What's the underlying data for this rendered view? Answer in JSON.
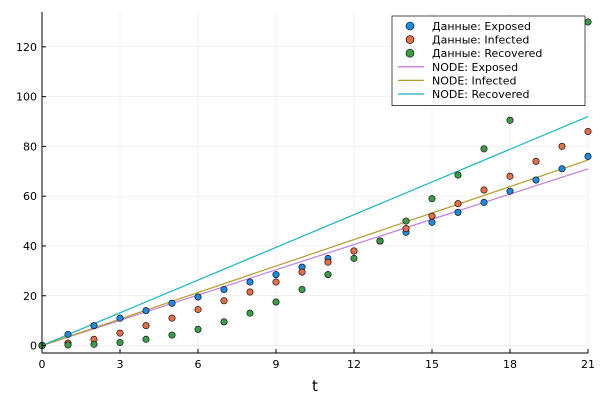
{
  "chart_data": {
    "type": "scatter",
    "title": "",
    "xlabel": "t",
    "ylabel": "",
    "xlim": [
      0,
      21
    ],
    "ylim": [
      -3,
      134
    ],
    "xticks": [
      0,
      3,
      6,
      9,
      12,
      15,
      18,
      21
    ],
    "yticks": [
      0,
      20,
      40,
      60,
      80,
      100,
      120
    ],
    "grid": true,
    "legend_position": "top-right",
    "scatter_series": [
      {
        "name": "Данные: Exposed",
        "color": "#1f8ae0",
        "x": [
          0,
          1,
          2,
          3,
          4,
          5,
          6,
          7,
          8,
          9,
          10,
          11,
          12,
          13,
          14,
          15,
          16,
          17,
          18,
          19,
          20,
          21
        ],
        "y": [
          0,
          4.5,
          8,
          11,
          14,
          17,
          19.5,
          22.5,
          25.5,
          28.5,
          31.5,
          35,
          38,
          42,
          45.5,
          49.5,
          53.5,
          57.5,
          62,
          66.5,
          71,
          76
        ]
      },
      {
        "name": "Данные: Infected",
        "color": "#e26f46",
        "x": [
          0,
          1,
          2,
          3,
          4,
          5,
          6,
          7,
          8,
          9,
          10,
          11,
          12,
          13,
          14,
          15,
          16,
          17,
          18,
          19,
          20,
          21
        ],
        "y": [
          0,
          1,
          2.5,
          5,
          8,
          11,
          14.5,
          18,
          21.5,
          25.5,
          29.5,
          33.5,
          38,
          42,
          47,
          52,
          57,
          62.5,
          68,
          74,
          80,
          86
        ]
      },
      {
        "name": "Данные: Recovered",
        "color": "#3b9e46",
        "x": [
          0,
          1,
          2,
          3,
          4,
          5,
          6,
          7,
          8,
          9,
          10,
          11,
          12,
          13,
          14,
          15,
          16,
          17,
          18,
          19,
          20,
          21
        ],
        "y": [
          0,
          0.2,
          0.5,
          1.2,
          2.5,
          4.2,
          6.5,
          9.5,
          13,
          17.5,
          22.5,
          28.5,
          35,
          42,
          50,
          59,
          68.5,
          79,
          90.5,
          103,
          116,
          130
        ]
      }
    ],
    "line_series": [
      {
        "name": "NODE: Exposed",
        "color": "#c57fd9",
        "x": [
          0,
          21
        ],
        "y": [
          0,
          71
        ]
      },
      {
        "name": "NODE: Infected",
        "color": "#b89c2c",
        "x": [
          0,
          21
        ],
        "y": [
          0,
          74.5
        ]
      },
      {
        "name": "NODE: Recovered",
        "color": "#19b6c0",
        "x": [
          0,
          21
        ],
        "y": [
          0,
          92
        ]
      }
    ]
  }
}
